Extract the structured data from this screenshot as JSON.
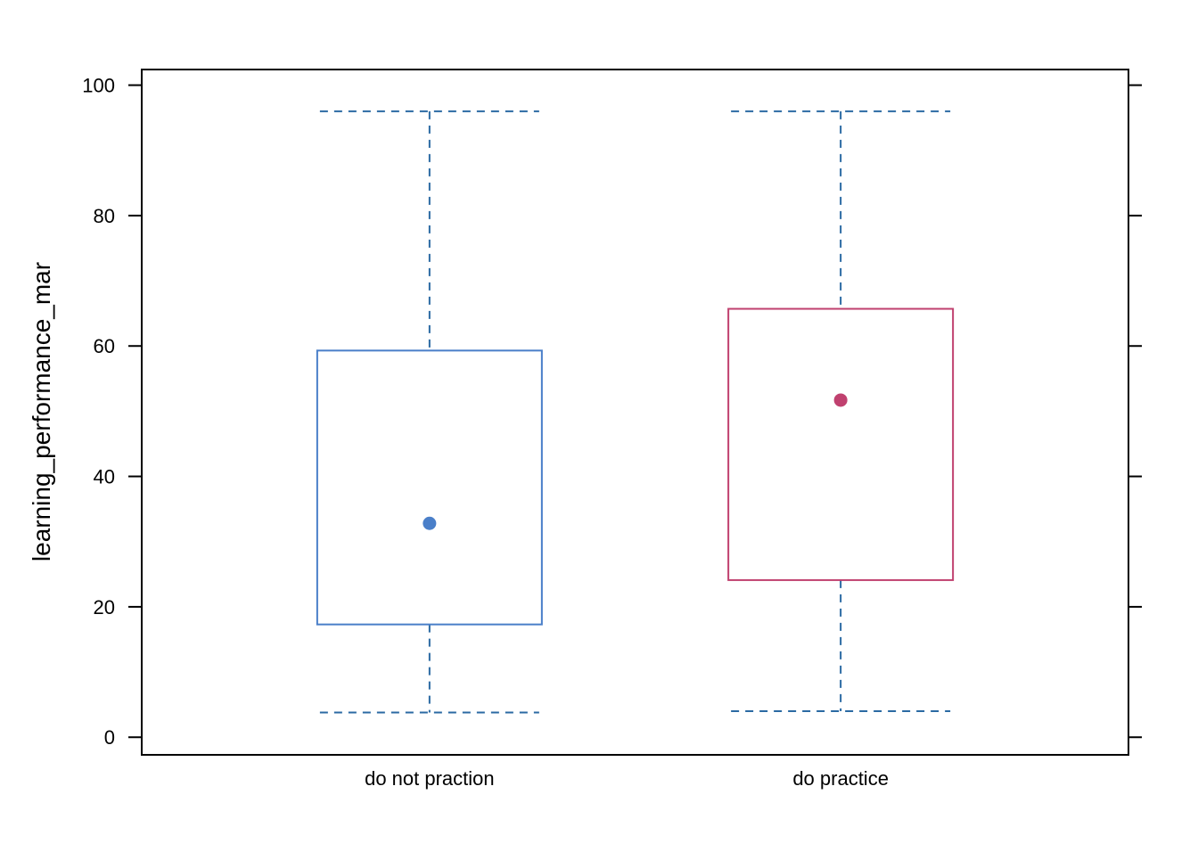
{
  "chart_data": {
    "type": "box",
    "ylabel": "learning_performance_mar",
    "xlabel": "",
    "ylim": [
      -2.7,
      102.4
    ],
    "y_ticks": [
      0,
      20,
      40,
      60,
      80,
      100
    ],
    "y_tick_labels": [
      "0",
      "20",
      "40",
      "60",
      "80",
      "100"
    ],
    "categories": [
      "do not praction",
      "do practice"
    ],
    "boxes": [
      {
        "category": "do not praction",
        "whisker_low": 3.8,
        "q1": 17.3,
        "median": 32.8,
        "q3": 59.3,
        "whisker_high": 96.0,
        "color": "#4a7fc9"
      },
      {
        "category": "do practice",
        "whisker_low": 4.0,
        "q1": 24.1,
        "median": 51.7,
        "q3": 65.7,
        "whisker_high": 96.0,
        "color": "#c0416f"
      }
    ],
    "whisker_color": "#2b6aa3",
    "grid": false,
    "legend": "none"
  }
}
